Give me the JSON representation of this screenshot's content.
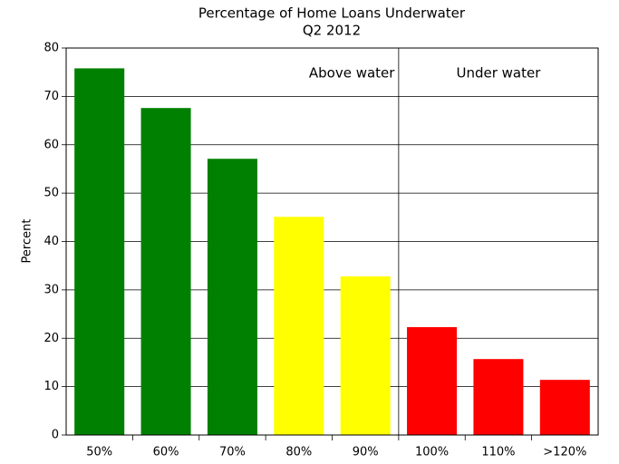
{
  "chart_data": {
    "type": "bar",
    "title": [
      "Percentage of Home Loans Underwater",
      "Q2 2012"
    ],
    "ylabel": "Percent",
    "categories": [
      "50%",
      "60%",
      "70%",
      "80%",
      "90%",
      "100%",
      "110%",
      ">120%"
    ],
    "values": [
      75.8,
      67.6,
      57.1,
      45.1,
      32.8,
      22.3,
      15.7,
      11.4
    ],
    "colors": [
      "#008000",
      "#008000",
      "#008000",
      "#ffff00",
      "#ffff00",
      "#ff0000",
      "#ff0000",
      "#ff0000"
    ],
    "annotations": [
      "Above water",
      "Under water"
    ],
    "ylim": [
      0,
      80
    ],
    "yticks": [
      0,
      10,
      20,
      30,
      40,
      50,
      60,
      70,
      80
    ],
    "grid": true
  }
}
